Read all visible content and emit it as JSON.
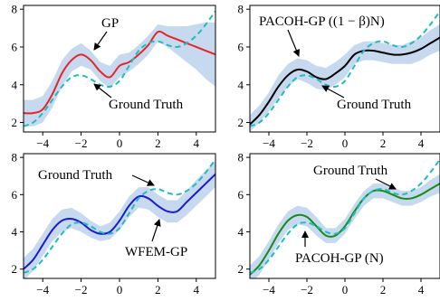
{
  "chart_data": [
    {
      "type": "line",
      "xlim": [
        -5,
        5
      ],
      "ylim": [
        1.5,
        8.2
      ],
      "xticks": [
        -4,
        -2,
        0,
        2,
        4
      ],
      "yticks": [
        2,
        4,
        6,
        8
      ],
      "band_color": "#c6d9ee",
      "series": [
        {
          "name": "GP",
          "style": "solid",
          "color": "#e8242a",
          "x": [
            -5,
            -4.5,
            -4,
            -3.5,
            -3,
            -2.5,
            -2,
            -1.5,
            -1,
            -0.5,
            0,
            0.5,
            1,
            1.5,
            2,
            2.5,
            3,
            3.5,
            4,
            4.5,
            5
          ],
          "y": [
            2.5,
            2.5,
            2.7,
            3.5,
            4.6,
            5.3,
            5.6,
            5.3,
            4.7,
            4.4,
            5.0,
            5.2,
            5.6,
            6.1,
            6.8,
            6.6,
            6.4,
            6.2,
            6.0,
            5.8,
            5.6
          ],
          "lower": [
            1.8,
            1.8,
            2.0,
            2.8,
            3.9,
            4.7,
            5.0,
            4.8,
            4.2,
            3.8,
            4.4,
            4.7,
            5.1,
            5.6,
            6.3,
            6.0,
            5.6,
            5.2,
            4.8,
            4.3,
            3.9
          ],
          "upper": [
            3.2,
            3.2,
            3.4,
            4.2,
            5.3,
            5.9,
            6.2,
            5.8,
            5.2,
            5.0,
            5.6,
            5.7,
            6.1,
            6.6,
            7.2,
            7.1,
            7.1,
            7.1,
            7.2,
            7.3,
            7.3
          ]
        },
        {
          "name": "Ground Truth",
          "style": "dashed",
          "color": "#1fbcc0",
          "x": [
            -5,
            -4.5,
            -4,
            -3.5,
            -3,
            -2.5,
            -2,
            -1.5,
            -1,
            -0.5,
            0,
            0.5,
            1,
            1.5,
            2,
            2.5,
            3,
            3.5,
            4,
            4.5,
            5
          ],
          "y": [
            1.8,
            2.0,
            2.5,
            3.2,
            3.9,
            4.4,
            4.5,
            4.3,
            4.0,
            3.9,
            4.2,
            5.0,
            5.8,
            6.2,
            6.3,
            6.1,
            6.0,
            6.2,
            6.6,
            7.2,
            7.9
          ]
        }
      ],
      "annotations": [
        {
          "text": "GP",
          "target_series": "GP"
        },
        {
          "text": "Ground Truth",
          "target_series": "Ground Truth"
        }
      ]
    },
    {
      "type": "line",
      "xlim": [
        -5,
        5
      ],
      "ylim": [
        1.5,
        8.2
      ],
      "xticks": [
        -4,
        -2,
        0,
        2,
        4
      ],
      "yticks": [
        2,
        4,
        6,
        8
      ],
      "band_color": "#c6d9ee",
      "series": [
        {
          "name": "PACOH-GP ((1 − β)N)",
          "style": "solid",
          "color": "#000000",
          "x": [
            -5,
            -4.5,
            -4,
            -3.5,
            -3,
            -2.5,
            -2,
            -1.5,
            -1,
            -0.5,
            0,
            0.5,
            1,
            1.5,
            2,
            2.5,
            3,
            3.5,
            4,
            4.5,
            5
          ],
          "y": [
            1.9,
            2.4,
            3.1,
            3.9,
            4.5,
            4.8,
            4.7,
            4.4,
            4.3,
            4.6,
            5.0,
            5.6,
            5.8,
            5.8,
            5.7,
            5.6,
            5.6,
            5.7,
            5.9,
            6.2,
            6.5
          ],
          "lower": [
            1.5,
            2.0,
            2.6,
            3.3,
            3.9,
            4.3,
            4.1,
            3.8,
            3.7,
            4.0,
            4.4,
            5.1,
            5.3,
            5.3,
            5.2,
            5.1,
            5.1,
            5.1,
            5.3,
            5.6,
            5.8
          ],
          "upper": [
            2.4,
            2.9,
            3.6,
            4.5,
            5.1,
            5.4,
            5.3,
            5.0,
            4.9,
            5.2,
            5.6,
            6.1,
            6.3,
            6.3,
            6.2,
            6.1,
            6.1,
            6.3,
            6.5,
            6.9,
            7.2
          ]
        },
        {
          "name": "Ground Truth",
          "style": "dashed",
          "color": "#1fbcc0",
          "x": [
            -5,
            -4.5,
            -4,
            -3.5,
            -3,
            -2.5,
            -2,
            -1.5,
            -1,
            -0.5,
            0,
            0.5,
            1,
            1.5,
            2,
            2.5,
            3,
            3.5,
            4,
            4.5,
            5
          ],
          "y": [
            1.8,
            2.0,
            2.5,
            3.2,
            3.9,
            4.4,
            4.5,
            4.3,
            4.0,
            3.9,
            4.2,
            5.0,
            5.8,
            6.2,
            6.3,
            6.1,
            6.0,
            6.2,
            6.6,
            7.2,
            7.9
          ]
        }
      ],
      "annotations": [
        {
          "text": "PACOH-GP ((1 − β)N)",
          "target_series": "PACOH-GP ((1 − β)N)"
        },
        {
          "text": "Ground Truth",
          "target_series": "Ground Truth"
        }
      ]
    },
    {
      "type": "line",
      "xlim": [
        -5,
        5
      ],
      "ylim": [
        1.5,
        8.2
      ],
      "xticks": [
        -4,
        -2,
        0,
        2,
        4
      ],
      "yticks": [
        2,
        4,
        6,
        8
      ],
      "band_color": "#c6d9ee",
      "series": [
        {
          "name": "WFEM-GP",
          "style": "solid",
          "color": "#1a1ad0",
          "x": [
            -5,
            -4.5,
            -4,
            -3.5,
            -3,
            -2.5,
            -2,
            -1.5,
            -1,
            -0.5,
            0,
            0.5,
            1,
            1.5,
            2,
            2.5,
            3,
            3.5,
            4,
            4.5,
            5
          ],
          "y": [
            2.0,
            2.5,
            3.3,
            4.1,
            4.6,
            4.7,
            4.5,
            4.1,
            3.9,
            4.0,
            4.6,
            5.4,
            5.9,
            5.8,
            5.4,
            5.1,
            5.1,
            5.6,
            6.1,
            6.6,
            7.1
          ],
          "lower": [
            1.4,
            1.9,
            2.7,
            3.5,
            4.0,
            4.2,
            4.0,
            3.7,
            3.5,
            3.6,
            4.1,
            4.8,
            5.3,
            5.2,
            4.8,
            4.5,
            4.5,
            4.9,
            5.4,
            5.9,
            6.4
          ],
          "upper": [
            2.6,
            3.1,
            3.9,
            4.7,
            5.2,
            5.3,
            5.0,
            4.6,
            4.3,
            4.5,
            5.1,
            5.9,
            6.4,
            6.4,
            6.0,
            5.7,
            5.7,
            6.2,
            6.8,
            7.3,
            7.8
          ]
        },
        {
          "name": "Ground Truth",
          "style": "dashed",
          "color": "#1fbcc0",
          "x": [
            -5,
            -4.5,
            -4,
            -3.5,
            -3,
            -2.5,
            -2,
            -1.5,
            -1,
            -0.5,
            0,
            0.5,
            1,
            1.5,
            2,
            2.5,
            3,
            3.5,
            4,
            4.5,
            5
          ],
          "y": [
            1.8,
            2.0,
            2.5,
            3.2,
            3.9,
            4.4,
            4.5,
            4.3,
            4.0,
            3.9,
            4.2,
            5.0,
            5.8,
            6.2,
            6.3,
            6.1,
            6.0,
            6.2,
            6.6,
            7.2,
            7.9
          ]
        }
      ],
      "annotations": [
        {
          "text": "Ground Truth",
          "target_series": "Ground Truth"
        },
        {
          "text": "WFEM-GP",
          "target_series": "WFEM-GP"
        }
      ]
    },
    {
      "type": "line",
      "xlim": [
        -5,
        5
      ],
      "ylim": [
        1.5,
        8.2
      ],
      "xticks": [
        -4,
        -2,
        0,
        2,
        4
      ],
      "yticks": [
        2,
        4,
        6,
        8
      ],
      "band_color": "#c6d9ee",
      "series": [
        {
          "name": "PACOH-GP (N)",
          "style": "solid",
          "color": "#1a8a1a",
          "x": [
            -5,
            -4.5,
            -4,
            -3.5,
            -3,
            -2.5,
            -2,
            -1.5,
            -1,
            -0.5,
            0,
            0.5,
            1,
            1.5,
            2,
            2.5,
            3,
            3.5,
            4,
            4.5,
            5
          ],
          "y": [
            1.7,
            2.2,
            3.0,
            3.9,
            4.6,
            4.9,
            4.8,
            4.3,
            3.8,
            3.8,
            4.3,
            5.1,
            5.8,
            6.2,
            6.2,
            6.0,
            5.8,
            5.8,
            6.0,
            6.3,
            6.6
          ],
          "lower": [
            1.2,
            1.7,
            2.5,
            3.4,
            4.1,
            4.4,
            4.3,
            3.8,
            3.4,
            3.4,
            3.9,
            4.7,
            5.4,
            5.8,
            5.8,
            5.6,
            5.4,
            5.4,
            5.6,
            5.9,
            6.1
          ],
          "upper": [
            2.2,
            2.7,
            3.5,
            4.4,
            5.1,
            5.4,
            5.3,
            4.8,
            4.2,
            4.2,
            4.7,
            5.5,
            6.2,
            6.6,
            6.6,
            6.4,
            6.2,
            6.2,
            6.4,
            6.8,
            7.1
          ]
        },
        {
          "name": "Ground Truth",
          "style": "dashed",
          "color": "#1fbcc0",
          "x": [
            -5,
            -4.5,
            -4,
            -3.5,
            -3,
            -2.5,
            -2,
            -1.5,
            -1,
            -0.5,
            0,
            0.5,
            1,
            1.5,
            2,
            2.5,
            3,
            3.5,
            4,
            4.5,
            5
          ],
          "y": [
            1.8,
            2.0,
            2.5,
            3.2,
            3.9,
            4.4,
            4.5,
            4.3,
            4.0,
            3.9,
            4.2,
            5.0,
            5.8,
            6.2,
            6.3,
            6.1,
            6.0,
            6.2,
            6.6,
            7.2,
            7.9
          ]
        }
      ],
      "annotations": [
        {
          "text": "Ground Truth",
          "target_series": "Ground Truth"
        },
        {
          "text": "PACOH-GP (N)",
          "target_series": "PACOH-GP (N)"
        }
      ]
    }
  ]
}
